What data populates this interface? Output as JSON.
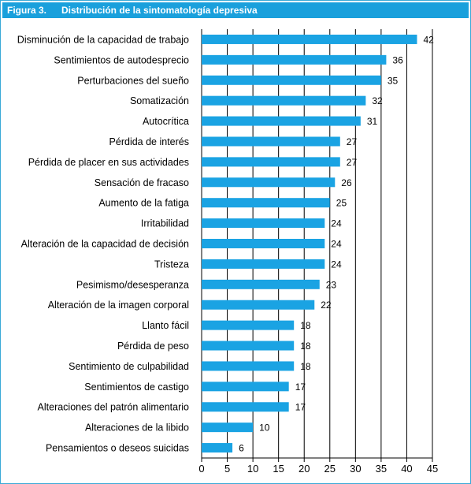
{
  "figure": {
    "label": "Figura 3.",
    "title": "Distribución de la sintomatología depresiva"
  },
  "colors": {
    "bar": "#1aa3e3",
    "header": "#1aa0dc",
    "grid": "#000000"
  },
  "chart_data": {
    "type": "bar",
    "orientation": "horizontal",
    "title": "Distribución de la sintomatología depresiva",
    "xlabel": "",
    "ylabel": "",
    "xlim": [
      0,
      45
    ],
    "xticks": [
      0,
      5,
      10,
      15,
      20,
      25,
      30,
      35,
      40,
      45
    ],
    "grid": "vertical",
    "categories": [
      "Disminución de la capacidad de trabajo",
      "Sentimientos de autodesprecio",
      "Perturbaciones del sueño",
      "Somatización",
      "Autocrítica",
      "Pérdida de interés",
      "Pérdida de placer en sus actividades",
      "Sensación de fracaso",
      "Aumento de la fatiga",
      "Irritabilidad",
      "Alteración de la capacidad de decisión",
      "Tristeza",
      "Pesimismo/desesperanza",
      "Alteración de la imagen corporal",
      "Llanto fácil",
      "Pérdida de peso",
      "Sentimiento de culpabilidad",
      "Sentimientos de castigo",
      "Alteraciones del patrón alimentario",
      "Alteraciones de la libido",
      "Pensamientos o deseos suicidas"
    ],
    "values": [
      42,
      36,
      35,
      32,
      31,
      27,
      27,
      26,
      25,
      24,
      24,
      24,
      23,
      22,
      18,
      18,
      18,
      17,
      17,
      10,
      6
    ]
  }
}
